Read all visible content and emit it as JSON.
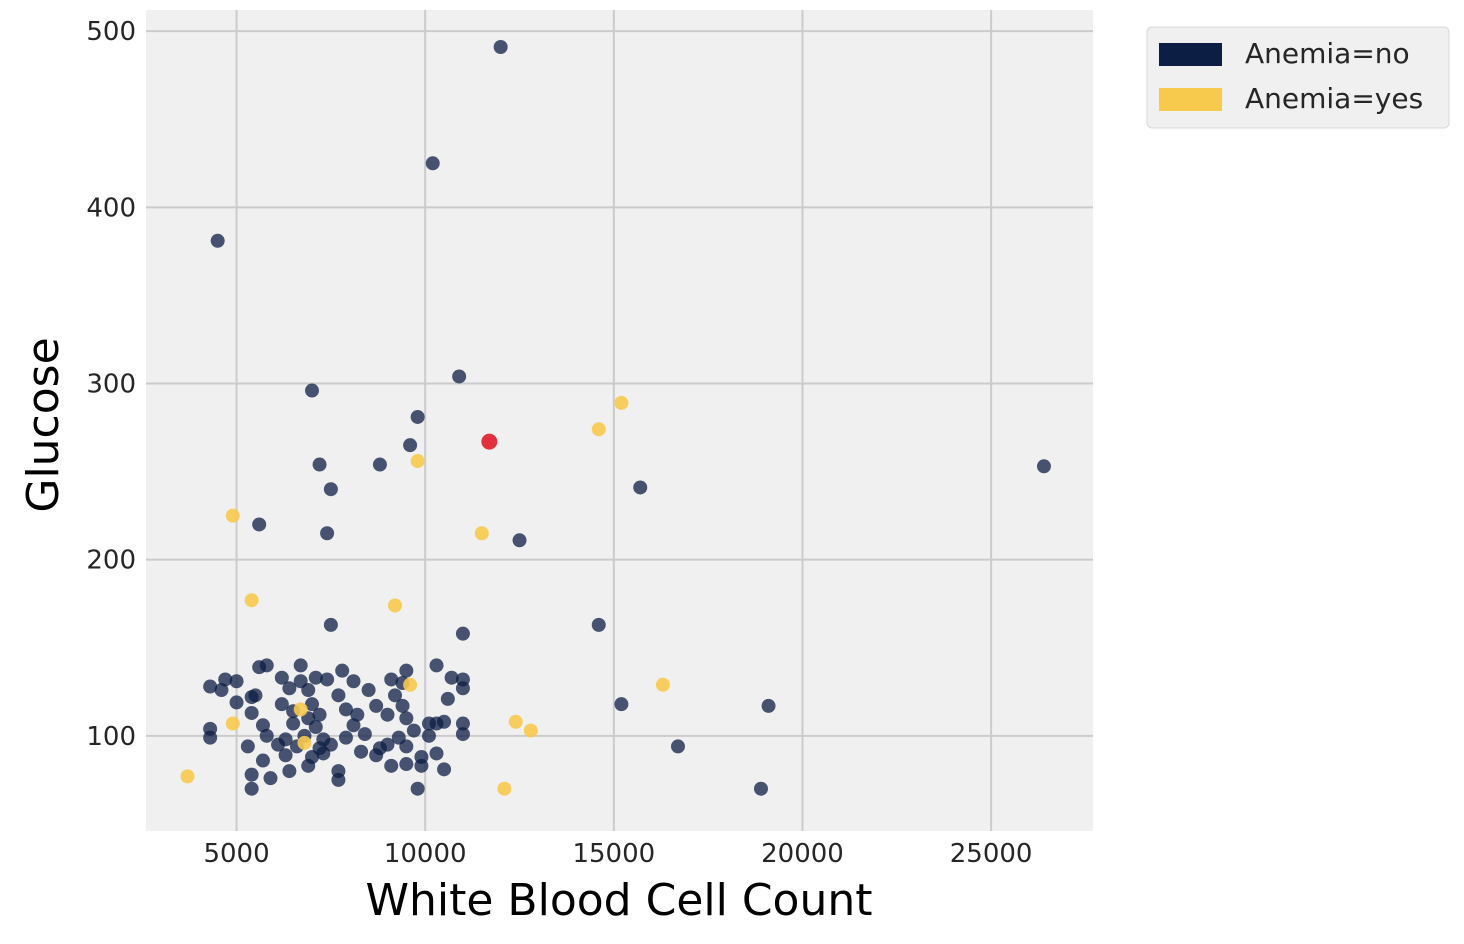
{
  "chart_data": {
    "type": "scatter",
    "title": "",
    "xlabel": "White Blood Cell Count",
    "ylabel": "Glucose",
    "xlim": [
      2600,
      27700
    ],
    "ylim": [
      46,
      512
    ],
    "xticks": [
      5000,
      10000,
      15000,
      20000,
      25000
    ],
    "yticks": [
      100,
      200,
      300,
      400,
      500
    ],
    "grid": true,
    "legend_position": "outside-top-right",
    "colors": {
      "background": "#f0f0f0",
      "grid": "#cbcbcb",
      "no": "#0d1e44",
      "yes": "#f7c94c",
      "highlight": "#e0313c"
    },
    "series": [
      {
        "name": "Anemia=no",
        "color": "#0d1e44",
        "points": [
          [
            12000,
            491
          ],
          [
            10200,
            425
          ],
          [
            4500,
            381
          ],
          [
            10900,
            304
          ],
          [
            7000,
            296
          ],
          [
            9800,
            281
          ],
          [
            9600,
            265
          ],
          [
            7200,
            254
          ],
          [
            8800,
            254
          ],
          [
            7500,
            240
          ],
          [
            15700,
            241
          ],
          [
            26400,
            253
          ],
          [
            5600,
            220
          ],
          [
            7400,
            215
          ],
          [
            12500,
            211
          ],
          [
            7500,
            163
          ],
          [
            14600,
            163
          ],
          [
            11000,
            158
          ],
          [
            5600,
            139
          ],
          [
            5800,
            140
          ],
          [
            6700,
            140
          ],
          [
            7800,
            137
          ],
          [
            9500,
            137
          ],
          [
            10300,
            140
          ],
          [
            4300,
            128
          ],
          [
            4700,
            132
          ],
          [
            5000,
            131
          ],
          [
            6200,
            133
          ],
          [
            6700,
            131
          ],
          [
            7100,
            133
          ],
          [
            7400,
            132
          ],
          [
            8100,
            131
          ],
          [
            9100,
            132
          ],
          [
            9400,
            130
          ],
          [
            10700,
            133
          ],
          [
            11000,
            132
          ],
          [
            4600,
            126
          ],
          [
            5500,
            123
          ],
          [
            6400,
            127
          ],
          [
            6900,
            126
          ],
          [
            7700,
            123
          ],
          [
            8500,
            126
          ],
          [
            9200,
            123
          ],
          [
            11000,
            127
          ],
          [
            5000,
            119
          ],
          [
            5400,
            122
          ],
          [
            6200,
            118
          ],
          [
            7000,
            118
          ],
          [
            8700,
            117
          ],
          [
            10600,
            121
          ],
          [
            9400,
            117
          ],
          [
            5400,
            113
          ],
          [
            6500,
            114
          ],
          [
            6900,
            110
          ],
          [
            7200,
            112
          ],
          [
            7900,
            115
          ],
          [
            8200,
            112
          ],
          [
            9000,
            112
          ],
          [
            9500,
            110
          ],
          [
            10100,
            107
          ],
          [
            10500,
            108
          ],
          [
            11000,
            107
          ],
          [
            4300,
            104
          ],
          [
            5700,
            106
          ],
          [
            6500,
            107
          ],
          [
            7100,
            105
          ],
          [
            8100,
            106
          ],
          [
            9700,
            103
          ],
          [
            10300,
            107
          ],
          [
            11000,
            101
          ],
          [
            4300,
            99
          ],
          [
            5800,
            100
          ],
          [
            6300,
            98
          ],
          [
            6800,
            100
          ],
          [
            7300,
            98
          ],
          [
            7900,
            99
          ],
          [
            8400,
            101
          ],
          [
            9300,
            99
          ],
          [
            10100,
            100
          ],
          [
            5300,
            94
          ],
          [
            6100,
            95
          ],
          [
            6600,
            94
          ],
          [
            7200,
            93
          ],
          [
            7500,
            95
          ],
          [
            8800,
            93
          ],
          [
            9000,
            95
          ],
          [
            9500,
            94
          ],
          [
            5700,
            86
          ],
          [
            6300,
            89
          ],
          [
            7000,
            88
          ],
          [
            7300,
            90
          ],
          [
            8300,
            91
          ],
          [
            8700,
            89
          ],
          [
            9900,
            88
          ],
          [
            10300,
            90
          ],
          [
            5400,
            78
          ],
          [
            5900,
            76
          ],
          [
            6400,
            80
          ],
          [
            6900,
            83
          ],
          [
            7700,
            80
          ],
          [
            9100,
            83
          ],
          [
            9500,
            84
          ],
          [
            9900,
            83
          ],
          [
            10500,
            81
          ],
          [
            7700,
            75
          ],
          [
            5400,
            70
          ],
          [
            9800,
            70
          ],
          [
            16700,
            94
          ],
          [
            15200,
            118
          ],
          [
            19100,
            117
          ],
          [
            18900,
            70
          ]
        ]
      },
      {
        "name": "Anemia=yes",
        "color": "#f7c94c",
        "points": [
          [
            15200,
            289
          ],
          [
            14600,
            274
          ],
          [
            9800,
            256
          ],
          [
            4900,
            225
          ],
          [
            11500,
            215
          ],
          [
            5400,
            177
          ],
          [
            9200,
            174
          ],
          [
            16300,
            129
          ],
          [
            9600,
            129
          ],
          [
            6700,
            115
          ],
          [
            4900,
            107
          ],
          [
            12400,
            108
          ],
          [
            12800,
            103
          ],
          [
            3700,
            77
          ],
          [
            12100,
            70
          ],
          [
            6800,
            96
          ]
        ]
      }
    ],
    "highlight_point": [
      11700,
      267
    ]
  }
}
